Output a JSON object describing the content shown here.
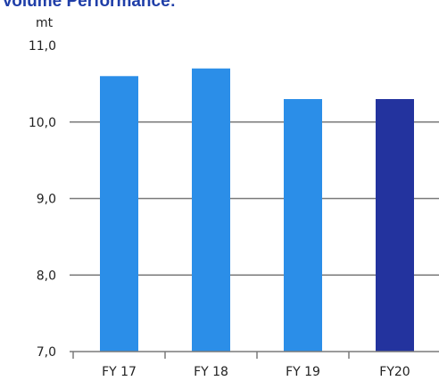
{
  "chart_data": {
    "type": "bar",
    "title": "Volume Performance:",
    "unit_label": "mt",
    "categories": [
      "FY 17",
      "FY 18",
      "FY 19",
      "FY20"
    ],
    "values": [
      10.6,
      10.7,
      10.3,
      10.3
    ],
    "ylim": [
      7.0,
      11.0
    ],
    "y_ticks": [
      "7,0",
      "8,0",
      "9,0",
      "10,0",
      "11,0"
    ],
    "xlabel": "",
    "ylabel": "",
    "grid": true,
    "bar_colors": [
      "#2b8ee8",
      "#2b8ee8",
      "#2b8ee8",
      "#23339e"
    ],
    "legend": "none"
  }
}
